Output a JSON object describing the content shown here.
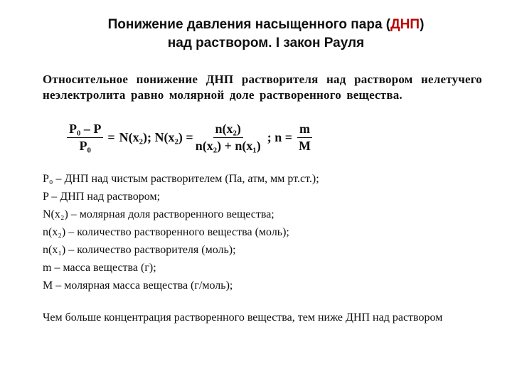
{
  "title": {
    "line1_pre": "Понижение давления насыщенного пара (",
    "dnp": "ДНП",
    "line1_post": ")",
    "line2": "над  раствором. I закон Рауля"
  },
  "definition": "Относительное понижение ДНП растворителя над раствором нелетучего неэлектролита равно молярной доле растворенного вещества.",
  "formula": {
    "f1_num": "P₀ – P",
    "f1_den": "P₀",
    "f1_eq": " = ",
    "nx2_a": "N(x₂); N(x₂) = ",
    "f2_num": "n(x₂)",
    "f2_den": "n(x₂) + n(x₁)",
    "semi": " ;  n = ",
    "f3_num": "m",
    "f3_den": "M"
  },
  "legend": {
    "l1": "P₀ – ДНП над чистым растворителем (Па, атм, мм рт.ст.);",
    "l2": "P – ДНП над раствором;",
    "l3": "N(x₂) – молярная доля растворенного вещества;",
    "l4": "n(x₂) – количество растворенного вещества (моль);",
    "l5": "n(x₁) – количество растворителя (моль);",
    "l6": "m – масса вещества (г);",
    "l7": "M – молярная масса вещества (г/моль);"
  },
  "conclusion": "Чем больше концентрация растворенного вещества, тем ниже ДНП над раствором",
  "colors": {
    "text": "#0f0f0f",
    "accent": "#c00000",
    "bg": "#ffffff"
  }
}
